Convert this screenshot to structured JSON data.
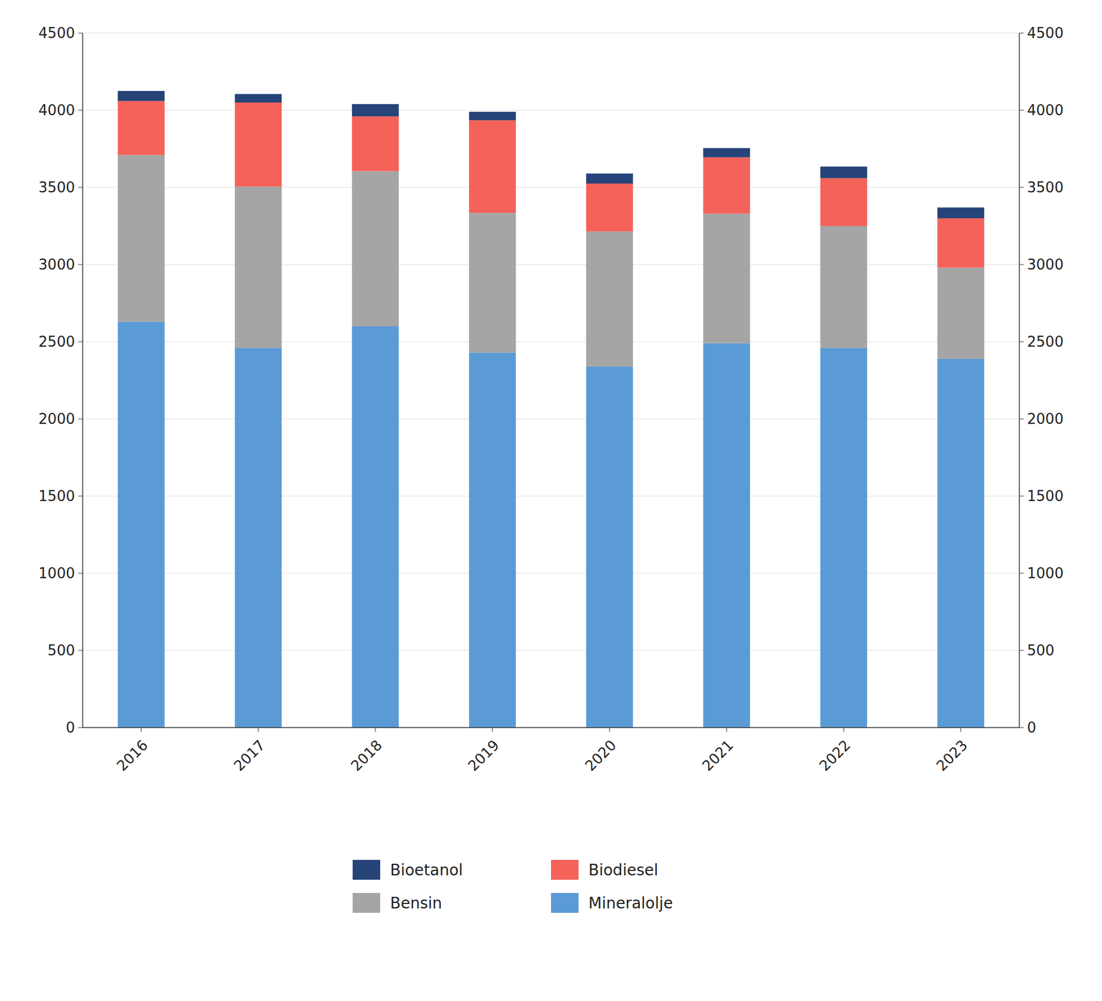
{
  "chart_data": {
    "type": "bar",
    "stacked": true,
    "categories": [
      "2016",
      "2017",
      "2018",
      "2019",
      "2020",
      "2021",
      "2022",
      "2023"
    ],
    "series": [
      {
        "name": "Mineralolje",
        "color": "#5B9BD5",
        "values": [
          2630,
          2460,
          2600,
          2430,
          2340,
          2490,
          2460,
          2390
        ]
      },
      {
        "name": "Bensin",
        "color": "#A5A5A5",
        "values": [
          1080,
          1045,
          1005,
          905,
          875,
          840,
          790,
          590
        ]
      },
      {
        "name": "Biodiesel",
        "color": "#F4625A",
        "values": [
          350,
          545,
          355,
          600,
          310,
          365,
          310,
          320
        ]
      },
      {
        "name": "Bioetanol",
        "color": "#264478",
        "values": [
          65,
          55,
          80,
          55,
          65,
          60,
          75,
          70
        ]
      }
    ],
    "ylim": [
      0,
      4500
    ],
    "yticks": [
      0,
      500,
      1000,
      1500,
      2000,
      2500,
      3000,
      3500,
      4000,
      4500
    ],
    "y2lim": [
      0,
      4500
    ],
    "y2ticks": [
      0,
      500,
      1000,
      1500,
      2000,
      2500,
      3000,
      3500,
      4000,
      4500
    ],
    "grid": true,
    "legend": "bottom"
  }
}
